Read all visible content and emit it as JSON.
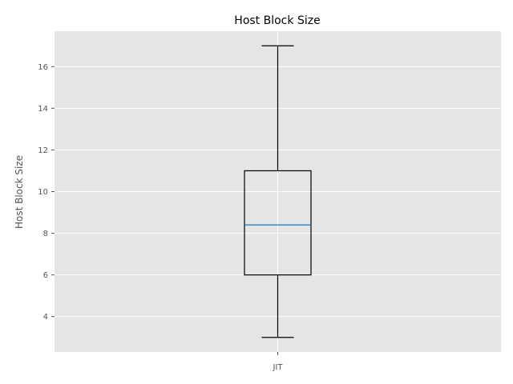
{
  "chart_data": {
    "type": "box",
    "title": "Host Block Size",
    "xlabel": "",
    "ylabel": "Host Block Size",
    "categories": [
      "JIT"
    ],
    "boxes": [
      {
        "category": "JIT",
        "whisker_low": 3,
        "q1": 6,
        "median": 8.4,
        "q3": 11,
        "whisker_high": 17
      }
    ],
    "ylim": [
      2.3,
      17.7
    ],
    "yticks": [
      4,
      6,
      8,
      10,
      12,
      14,
      16
    ],
    "grid": true,
    "colors": {
      "background": "#e5e5e5",
      "grid": "#ffffff",
      "box": "#000000",
      "median": "#1f77b4"
    }
  }
}
